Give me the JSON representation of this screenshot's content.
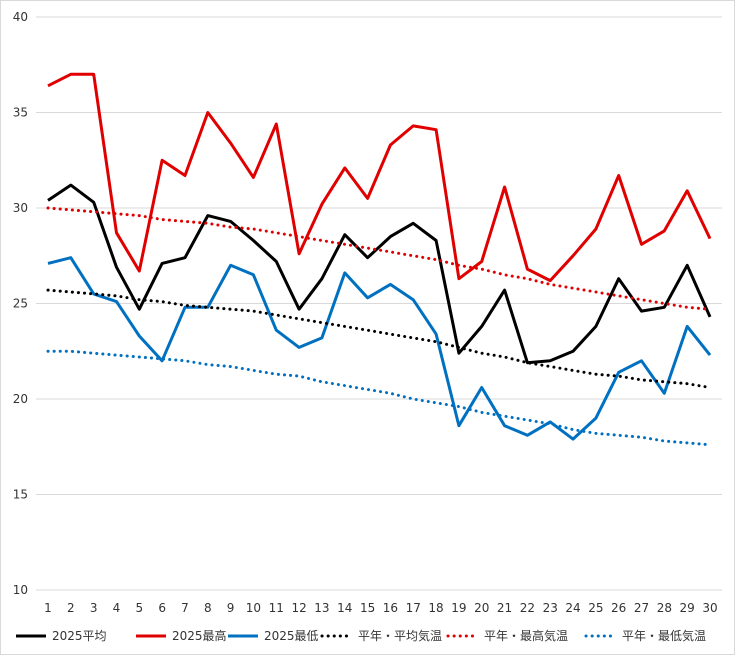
{
  "chart_data": {
    "type": "line",
    "title": "",
    "xlabel": "",
    "ylabel": "",
    "ylim": [
      10,
      40
    ],
    "yticks": [
      10,
      15,
      20,
      25,
      30,
      35,
      40
    ],
    "x": [
      1,
      2,
      3,
      4,
      5,
      6,
      7,
      8,
      9,
      10,
      11,
      12,
      13,
      14,
      15,
      16,
      17,
      18,
      19,
      20,
      21,
      22,
      23,
      24,
      25,
      26,
      27,
      28,
      29,
      30
    ],
    "grid": "horizontal",
    "legend": "bottom",
    "series": [
      {
        "name": "2025平均",
        "color": "#000000",
        "style": "solid",
        "values": [
          30.4,
          31.2,
          30.3,
          26.9,
          24.7,
          27.1,
          27.4,
          29.6,
          29.3,
          28.3,
          27.2,
          24.7,
          26.3,
          28.6,
          27.4,
          28.5,
          29.2,
          28.3,
          22.4,
          23.8,
          25.7,
          21.9,
          22.0,
          22.5,
          23.8,
          26.3,
          24.6,
          24.8,
          27.0,
          24.3
        ]
      },
      {
        "name": "2025最高",
        "color": "#e00000",
        "style": "solid",
        "values": [
          36.4,
          37.0,
          37.0,
          28.7,
          26.7,
          32.5,
          31.7,
          35.0,
          33.4,
          31.6,
          34.4,
          27.6,
          30.2,
          32.1,
          30.5,
          33.3,
          34.3,
          34.1,
          26.3,
          27.2,
          31.1,
          26.8,
          26.2,
          27.5,
          28.9,
          31.7,
          28.1,
          28.8,
          30.9,
          28.4
        ]
      },
      {
        "name": "2025最低",
        "color": "#0070c0",
        "style": "solid",
        "values": [
          27.1,
          27.4,
          25.5,
          25.1,
          23.3,
          22.0,
          24.8,
          24.8,
          27.0,
          26.5,
          23.6,
          22.7,
          23.2,
          26.6,
          25.3,
          26.0,
          25.2,
          23.4,
          18.6,
          20.6,
          18.6,
          18.1,
          18.8,
          17.9,
          19.0,
          21.4,
          22.0,
          20.3,
          23.8,
          22.3
        ]
      },
      {
        "name": "平年・平均気温",
        "color": "#000000",
        "style": "dotted",
        "values": [
          25.7,
          25.6,
          25.5,
          25.4,
          25.2,
          25.1,
          24.9,
          24.8,
          24.7,
          24.6,
          24.4,
          24.2,
          24.0,
          23.8,
          23.6,
          23.4,
          23.2,
          23.0,
          22.7,
          22.4,
          22.2,
          21.9,
          21.7,
          21.5,
          21.3,
          21.2,
          21.0,
          20.9,
          20.8,
          20.6
        ]
      },
      {
        "name": "平年・最高気温",
        "color": "#e00000",
        "style": "dotted",
        "values": [
          30.0,
          29.9,
          29.8,
          29.7,
          29.6,
          29.4,
          29.3,
          29.2,
          29.0,
          28.9,
          28.7,
          28.5,
          28.3,
          28.1,
          27.9,
          27.7,
          27.5,
          27.3,
          27.0,
          26.8,
          26.5,
          26.3,
          26.0,
          25.8,
          25.6,
          25.4,
          25.2,
          25.0,
          24.8,
          24.7
        ]
      },
      {
        "name": "平年・最低気温",
        "color": "#0070c0",
        "style": "dotted",
        "values": [
          22.5,
          22.5,
          22.4,
          22.3,
          22.2,
          22.1,
          22.0,
          21.8,
          21.7,
          21.5,
          21.3,
          21.2,
          20.9,
          20.7,
          20.5,
          20.3,
          20.0,
          19.8,
          19.6,
          19.3,
          19.1,
          18.9,
          18.7,
          18.4,
          18.2,
          18.1,
          18.0,
          17.8,
          17.7,
          17.6
        ]
      }
    ]
  }
}
